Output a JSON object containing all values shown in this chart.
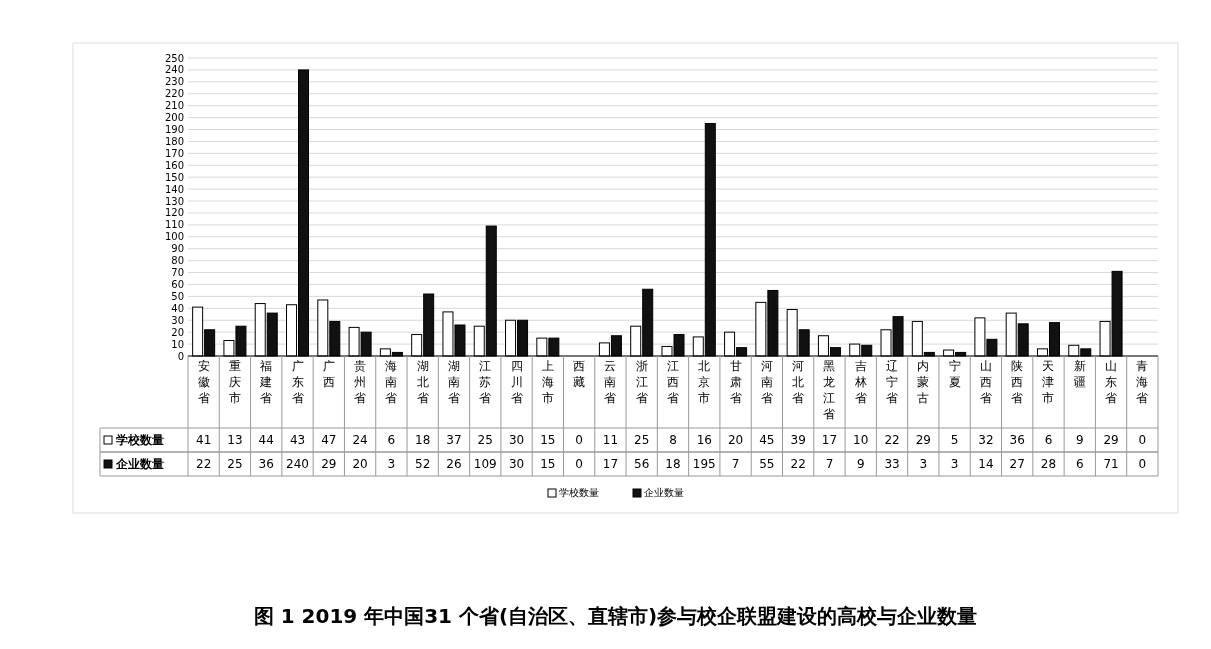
{
  "chart_data": {
    "type": "bar",
    "title": "图 1  2019 年中国31 个省(自治区、直辖市)参与校企联盟建设的高校与企业数量",
    "categories": [
      "安徽省",
      "重庆市",
      "福建省",
      "广东省",
      "广西",
      "贵州省",
      "海南省",
      "湖北省",
      "湖南省",
      "江苏省",
      "四川省",
      "上海市",
      "西藏",
      "云南省",
      "浙江省",
      "江西省",
      "北京市",
      "甘肃省",
      "河南省",
      "河北省",
      "黑龙江省",
      "吉林省",
      "辽宁省",
      "内蒙古",
      "宁夏",
      "山西省",
      "陕西省",
      "天津市",
      "新疆",
      "山东省",
      "青海省"
    ],
    "series": [
      {
        "name": "学校数量",
        "color": "#ffffff",
        "values": [
          41,
          13,
          44,
          43,
          47,
          24,
          6,
          18,
          37,
          25,
          30,
          15,
          0,
          11,
          25,
          8,
          16,
          20,
          45,
          39,
          17,
          10,
          22,
          29,
          5,
          32,
          36,
          6,
          9,
          29,
          0
        ]
      },
      {
        "name": "企业数量",
        "color": "#111111",
        "values": [
          22,
          25,
          36,
          240,
          29,
          20,
          3,
          52,
          26,
          109,
          30,
          15,
          0,
          17,
          56,
          18,
          195,
          7,
          55,
          22,
          7,
          9,
          33,
          3,
          3,
          14,
          27,
          28,
          6,
          71,
          0
        ]
      }
    ],
    "ylim": [
      0,
      250
    ],
    "yticks": [
      0,
      10,
      20,
      30,
      40,
      50,
      60,
      70,
      80,
      90,
      100,
      110,
      120,
      130,
      140,
      150,
      160,
      170,
      180,
      190,
      200,
      210,
      220,
      230,
      240,
      250
    ],
    "grid": "y",
    "legend": "bottom",
    "data_labels": true
  }
}
